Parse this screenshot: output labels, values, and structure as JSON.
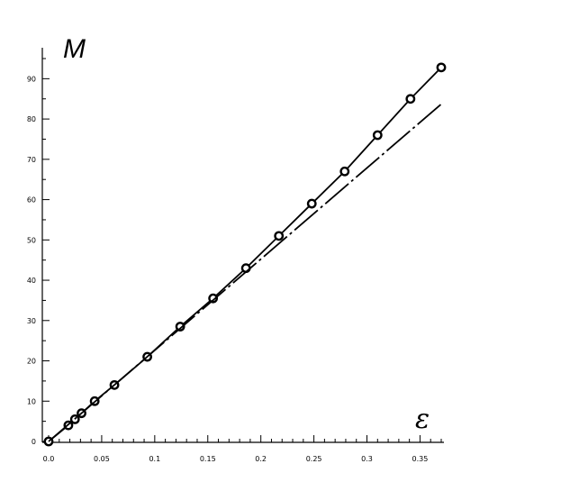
{
  "chart_data": {
    "type": "line",
    "title": "",
    "xlabel": "ε",
    "ylabel": "M",
    "xlim": [
      0,
      0.37
    ],
    "ylim": [
      0,
      95
    ],
    "x_ticks": [
      0.0,
      0.05,
      0.1,
      0.15,
      0.2,
      0.25,
      0.3,
      0.35
    ],
    "x_tick_labels": [
      "0.0",
      "0.05",
      "0.1",
      "0.15",
      "0.2",
      "0.25",
      "0.3",
      "0.35"
    ],
    "y_ticks": [
      0,
      10,
      20,
      30,
      40,
      50,
      60,
      70,
      80,
      90
    ],
    "y_tick_labels": [
      "0",
      "10",
      "20",
      "30",
      "40",
      "50",
      "60",
      "70",
      "80",
      "90"
    ],
    "grid": false,
    "legend": "none",
    "series": [
      {
        "style": "solid line with circle markers",
        "x": [
          0.0,
          0.0186,
          0.0248,
          0.031,
          0.0434,
          0.062,
          0.093,
          0.124,
          0.155,
          0.186,
          0.217,
          0.248,
          0.279,
          0.31,
          0.341,
          0.37
        ],
        "y": [
          0,
          4,
          5.5,
          7,
          10,
          14,
          21,
          28.5,
          35.5,
          43,
          51,
          59,
          67,
          76,
          85,
          92.8
        ]
      },
      {
        "style": "dash-dot line",
        "x": [
          0.0,
          0.37
        ],
        "y": [
          0,
          83.7
        ]
      }
    ],
    "colors": {
      "line": "#000000",
      "background": "#ffffff"
    }
  }
}
